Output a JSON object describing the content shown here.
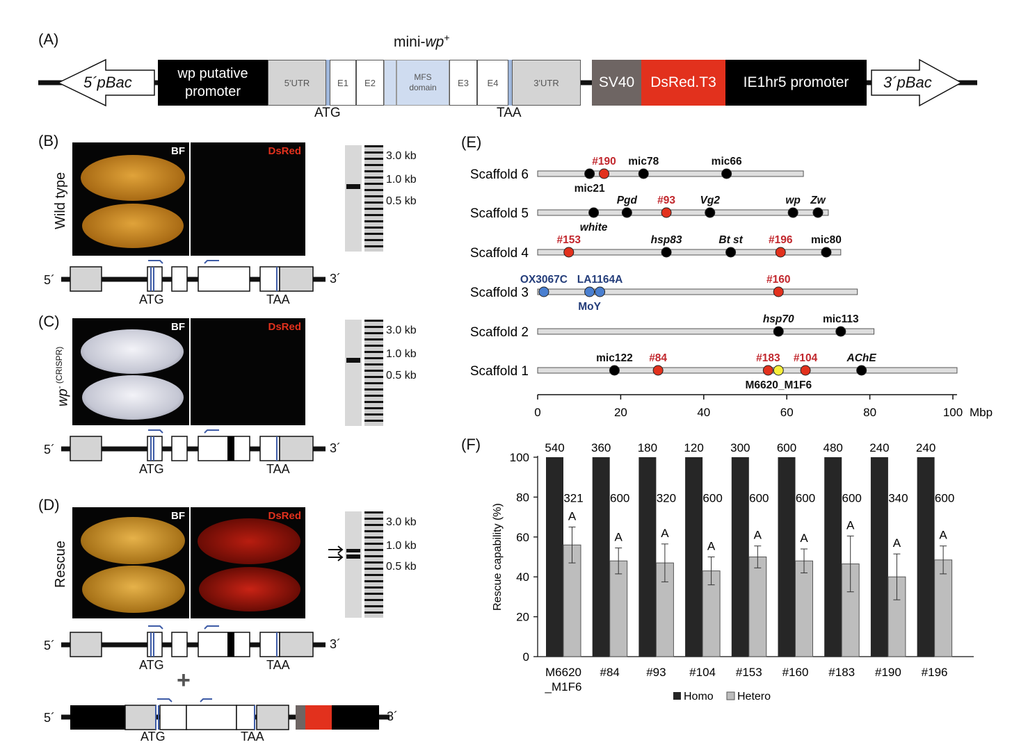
{
  "panelA": {
    "letter": "(A)",
    "title_main": "mini-",
    "title_italic": "wp",
    "title_sup": "+",
    "left_arrow": "5´pBac",
    "right_arrow": "3´pBac",
    "promoter": "wp putative promoter",
    "utr5": "5'UTR",
    "e1": "E1",
    "e2": "E2",
    "mfs": "MFS domain",
    "e3": "E3",
    "e4": "E4",
    "utr3": "3'UTR",
    "sv40": "SV40",
    "dsred": "DsRed.T3",
    "ie1": "IE1hr5 promoter",
    "atg": "ATG",
    "taa": "TAA",
    "colors": {
      "black": "#000000",
      "utr": "#d4d4d4",
      "blue_band": "#cfdcf0",
      "sv40": "#6e6563",
      "dsred": "#e2311d"
    }
  },
  "panelB": {
    "letter": "(B)",
    "side_label": "Wild type",
    "bf": "BF",
    "dsred": "DsRed",
    "kb3": "3.0 kb",
    "kb1": "1.0 kb",
    "kb05": "0.5 kb",
    "five": "5´",
    "three": "3´",
    "atg": "ATG",
    "taa": "TAA"
  },
  "panelC": {
    "letter": "(C)",
    "side_label": "wp",
    "side_sup": "- (CRISPR)",
    "bf": "BF",
    "dsred": "DsRed",
    "kb3": "3.0 kb",
    "kb1": "1.0 kb",
    "kb05": "0.5 kb",
    "five": "5´",
    "three": "3´",
    "atg": "ATG",
    "taa": "TAA"
  },
  "panelD": {
    "letter": "(D)",
    "side_label": "Rescue",
    "bf": "BF",
    "dsred": "DsRed",
    "kb3": "3.0 kb",
    "kb1": "1.0 kb",
    "kb05": "0.5 kb",
    "five": "5´",
    "three": "3´",
    "atg": "ATG",
    "taa": "TAA",
    "plus": "+",
    "five2": "5´",
    "three2": "3´",
    "atg2": "ATG",
    "taa2": "TAA"
  },
  "panelE": {
    "letter": "(E)",
    "unit": "Mbp",
    "ticks": [
      "0",
      "20",
      "40",
      "60",
      "80",
      "100"
    ],
    "scaffolds": [
      {
        "name": "Scaffold 6",
        "length": 64,
        "markers": [
          {
            "label": "mic21",
            "pos": 12.5,
            "color": "black",
            "style": "normal",
            "side": "below"
          },
          {
            "label": "#190",
            "pos": 16,
            "color": "red",
            "style": "normal",
            "side": "above"
          },
          {
            "label": "mic78",
            "pos": 25.5,
            "color": "black",
            "style": "normal",
            "side": "above"
          },
          {
            "label": "mic66",
            "pos": 45.5,
            "color": "black",
            "style": "normal",
            "side": "above"
          }
        ]
      },
      {
        "name": "Scaffold 5",
        "length": 70,
        "markers": [
          {
            "label": "white",
            "pos": 13.5,
            "color": "black",
            "style": "italic",
            "side": "below"
          },
          {
            "label": "Pgd",
            "pos": 21.5,
            "color": "black",
            "style": "italic",
            "side": "above"
          },
          {
            "label": "#93",
            "pos": 31,
            "color": "red",
            "style": "normal",
            "side": "above"
          },
          {
            "label": "Vg2",
            "pos": 41.5,
            "color": "black",
            "style": "italic",
            "side": "above"
          },
          {
            "label": "wp",
            "pos": 61.5,
            "color": "black",
            "style": "italic",
            "side": "above"
          },
          {
            "label": "Zw",
            "pos": 67.5,
            "color": "black",
            "style": "italic",
            "side": "above"
          }
        ]
      },
      {
        "name": "Scaffold 4",
        "length": 73,
        "markers": [
          {
            "label": "#153",
            "pos": 7.5,
            "color": "red",
            "style": "normal",
            "side": "above"
          },
          {
            "label": "hsp83",
            "pos": 31,
            "color": "black",
            "style": "italic",
            "side": "above"
          },
          {
            "label": "Bt st",
            "pos": 46.5,
            "color": "black",
            "style": "italic",
            "side": "above"
          },
          {
            "label": "#196",
            "pos": 58.5,
            "color": "red",
            "style": "normal",
            "side": "above"
          },
          {
            "label": "mic80",
            "pos": 69.5,
            "color": "black",
            "style": "normal",
            "side": "above"
          }
        ]
      },
      {
        "name": "Scaffold 3",
        "length": 77,
        "markers": [
          {
            "label": "OX3067C",
            "pos": 1.5,
            "color": "blue",
            "style": "normal",
            "side": "above"
          },
          {
            "label": "MoY",
            "pos": 12.5,
            "color": "blue",
            "style": "normal",
            "side": "below"
          },
          {
            "label": "LA1164A",
            "pos": 15,
            "color": "blue",
            "style": "normal",
            "side": "above"
          },
          {
            "label": "#160",
            "pos": 58,
            "color": "red",
            "style": "normal",
            "side": "above"
          }
        ]
      },
      {
        "name": "Scaffold 2",
        "length": 81,
        "markers": [
          {
            "label": "hsp70",
            "pos": 58,
            "color": "black",
            "style": "italic",
            "side": "above"
          },
          {
            "label": "mic113",
            "pos": 73,
            "color": "black",
            "style": "normal",
            "side": "above"
          }
        ]
      },
      {
        "name": "Scaffold 1",
        "length": 101,
        "markers": [
          {
            "label": "mic122",
            "pos": 18.5,
            "color": "black",
            "style": "normal",
            "side": "above"
          },
          {
            "label": "#84",
            "pos": 29,
            "color": "red",
            "style": "normal",
            "side": "above"
          },
          {
            "label": "#183",
            "pos": 55.5,
            "color": "red",
            "style": "normal",
            "side": "above"
          },
          {
            "label": "M6620_M1F6",
            "pos": 58,
            "color": "yellow",
            "style": "normal",
            "side": "below"
          },
          {
            "label": "#104",
            "pos": 64.5,
            "color": "red",
            "style": "normal",
            "side": "above"
          },
          {
            "label": "AChE",
            "pos": 78,
            "color": "black",
            "style": "italic",
            "side": "above"
          }
        ]
      }
    ],
    "colors": {
      "black": "#000000",
      "red": "#e2311d",
      "blue": "#4a7fd0",
      "yellow": "#f7ee3a",
      "bar": "#dedede",
      "red_text": "#c1272d",
      "blue_text": "#243d7a"
    }
  },
  "chart_data": {
    "type": "bar",
    "panel_letter": "(F)",
    "categories": [
      "M6620\n_M1F6",
      "#84",
      "#93",
      "#104",
      "#153",
      "#160",
      "#183",
      "#190",
      "#196"
    ],
    "series": [
      {
        "name": "Homo",
        "values": [
          100,
          100,
          100,
          100,
          100,
          100,
          100,
          100,
          100
        ],
        "n": [
          "540",
          "360",
          "180",
          "120",
          "300",
          "600",
          "480",
          "240",
          "240"
        ],
        "color": "#262626"
      },
      {
        "name": "Hetero",
        "values": [
          56,
          48,
          47,
          43,
          50,
          48,
          46.5,
          40,
          48.5
        ],
        "errors": [
          9,
          6.5,
          9.5,
          7,
          5.5,
          6,
          14,
          11.5,
          7
        ],
        "n": [
          "321",
          "600",
          "320",
          "600",
          "600",
          "600",
          "600",
          "340",
          "600"
        ],
        "group_letters": [
          "A",
          "A",
          "A",
          "A",
          "A",
          "A",
          "A",
          "A",
          "A"
        ],
        "color": "#bdbdbd"
      }
    ],
    "ylabel": "Rescue capability (%)",
    "ylim": [
      0,
      100
    ],
    "yticks": [
      "0",
      "20",
      "40",
      "60",
      "80",
      "100"
    ],
    "legend": "bottom-center"
  }
}
